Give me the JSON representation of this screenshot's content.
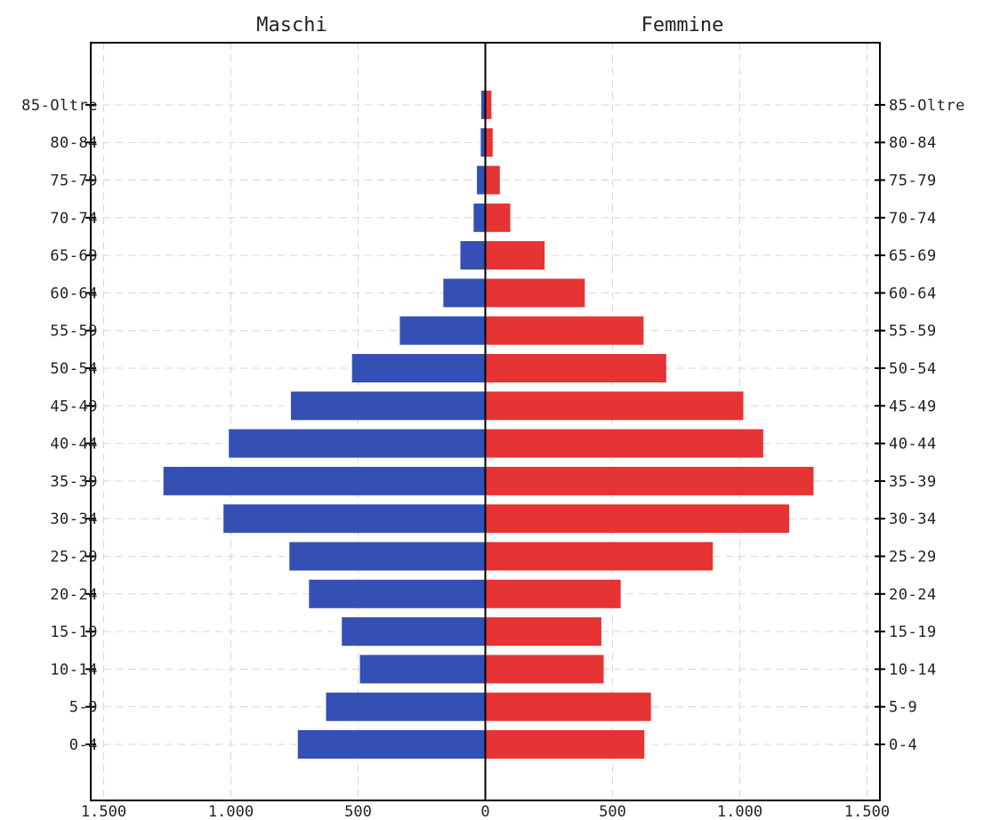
{
  "chart_data": {
    "type": "bar",
    "orientation": "horizontal",
    "layout": "population-pyramid",
    "categories": [
      "0-4",
      "5-9",
      "10-14",
      "15-19",
      "20-24",
      "25-29",
      "30-34",
      "35-39",
      "40-44",
      "45-49",
      "50-54",
      "55-59",
      "60-64",
      "65-69",
      "70-74",
      "75-79",
      "80-84",
      "85-Oltre"
    ],
    "series": [
      {
        "name": "Maschi",
        "side": "left",
        "color": "#3550b4",
        "values": [
          737,
          626,
          493,
          564,
          693,
          770,
          1029,
          1265,
          1008,
          764,
          524,
          336,
          165,
          98,
          46,
          33,
          18,
          16
        ]
      },
      {
        "name": "Femmine",
        "side": "right",
        "color": "#e63333",
        "values": [
          625,
          651,
          465,
          456,
          532,
          894,
          1194,
          1290,
          1092,
          1014,
          711,
          622,
          391,
          233,
          98,
          57,
          29,
          24
        ]
      }
    ],
    "x_ticks": [
      {
        "value": -1500,
        "label": "1.500"
      },
      {
        "value": -1000,
        "label": "1.000"
      },
      {
        "value": -500,
        "label": "500"
      },
      {
        "value": 0,
        "label": "0"
      },
      {
        "value": 500,
        "label": "500"
      },
      {
        "value": 1000,
        "label": "1.000"
      },
      {
        "value": 1500,
        "label": "1.500"
      }
    ],
    "xlim": [
      -1500,
      1500
    ],
    "grid": true,
    "side_titles": {
      "left": "Maschi",
      "right": "Femmine"
    }
  }
}
